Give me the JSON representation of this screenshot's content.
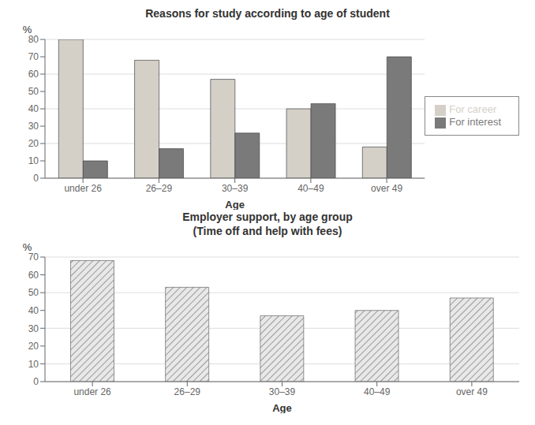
{
  "chart_data": [
    {
      "type": "bar",
      "title": "Reasons for study according to age of student",
      "categories": [
        "under 26",
        "26–29",
        "30–39",
        "40–49",
        "over 49"
      ],
      "series": [
        {
          "name": "For career",
          "color": "#d4d0c8",
          "values": [
            80,
            68,
            57,
            40,
            18
          ]
        },
        {
          "name": "For interest",
          "color": "#7a7a7a",
          "values": [
            10,
            17,
            26,
            43,
            70
          ]
        }
      ],
      "ylabel": "%",
      "xlabel": "Age",
      "ylim": [
        0,
        80
      ],
      "yticks": [
        0,
        10,
        20,
        30,
        40,
        50,
        60,
        70,
        80
      ],
      "grid": true,
      "legend": "right"
    },
    {
      "type": "bar",
      "title": "Employer support, by age group\n(Time off and help with fees)",
      "categories": [
        "under 26",
        "26–29",
        "30–39",
        "40–49",
        "over 49"
      ],
      "values": [
        68,
        53,
        37,
        40,
        47
      ],
      "color": "#e8e8e8",
      "ylabel": "%",
      "xlabel": "Age",
      "ylim": [
        0,
        70
      ],
      "yticks": [
        0,
        10,
        20,
        30,
        40,
        50,
        60,
        70
      ],
      "grid": true
    }
  ]
}
